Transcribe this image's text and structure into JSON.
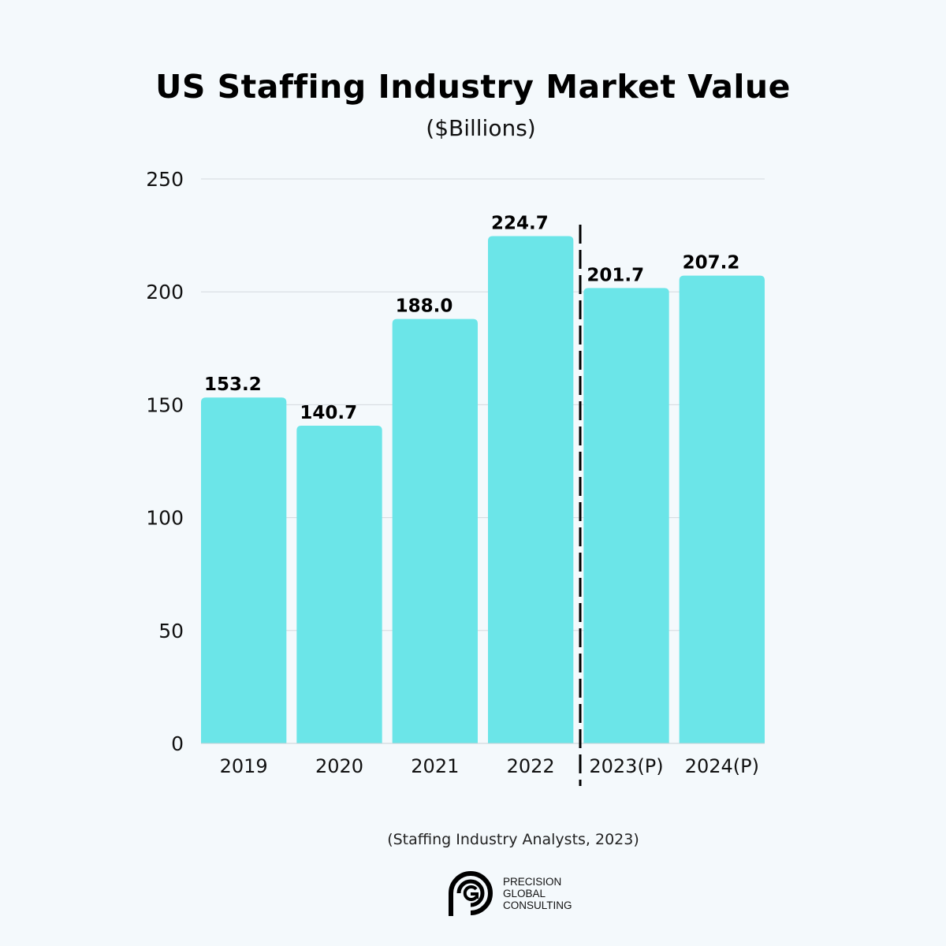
{
  "chart_data": {
    "type": "bar",
    "title": "US Staffing Industry Market Value",
    "subtitle": "($Billions)",
    "categories": [
      "2019",
      "2020",
      "2021",
      "2022",
      "2023(P)",
      "2024(P)"
    ],
    "values": [
      153.2,
      140.7,
      188.0,
      224.7,
      201.7,
      207.2
    ],
    "data_labels": [
      "153.2",
      "140.7",
      "188.0",
      "224.7",
      "201.7",
      "207.2"
    ],
    "ylim": [
      0,
      250
    ],
    "yticks": [
      0,
      50,
      100,
      150,
      200,
      250
    ],
    "grid": true,
    "bar_color": "#6be5e8",
    "annotation": "dashed vertical separator between actual (2019-2022) and projected (2023-2024) values"
  },
  "source": "(Staffing Industry Analysts, 2023)",
  "logo": {
    "lines": [
      "PRECISION",
      "GLOBAL",
      "CONSULTING"
    ]
  }
}
